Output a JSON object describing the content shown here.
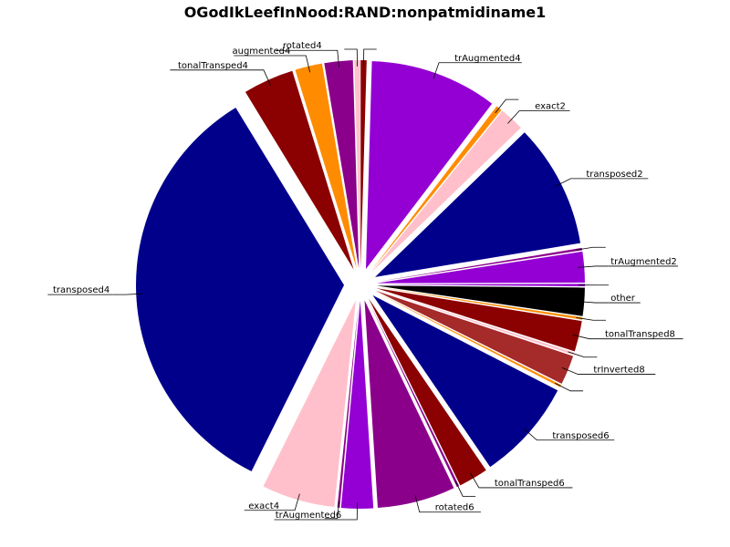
{
  "chart_data": {
    "type": "pie",
    "title": "OGodIkLeefInNood:RAND:nonpatmidiname1",
    "legend": "none",
    "start_angle_deg": 90,
    "direction": "counterclockwise",
    "slices": [
      {
        "label": "",
        "value": 0.5,
        "color": "#ffc0cb",
        "exploded": true
      },
      {
        "label": "rotated4",
        "value": 2.4,
        "color": "#8b008b",
        "exploded": true
      },
      {
        "label": "augmented4",
        "value": 2.3,
        "color": "#ff8c00",
        "exploded": true
      },
      {
        "label": "tonalTransped4",
        "value": 4.3,
        "color": "#8b0000",
        "exploded": true
      },
      {
        "label": "transposed4",
        "value": 37.0,
        "color": "#00008b",
        "exploded": true
      },
      {
        "label": "exact4",
        "value": 6.2,
        "color": "#ffc0cb",
        "exploded": true
      },
      {
        "label": "",
        "value": 0.2,
        "color": "#8b008b",
        "exploded": true
      },
      {
        "label": "trAugmented6",
        "value": 2.7,
        "color": "#9400d3",
        "exploded": true
      },
      {
        "label": "rotated6",
        "value": 6.6,
        "color": "#8b008b",
        "exploded": true
      },
      {
        "label": "",
        "value": 0.2,
        "color": "#8b008b",
        "exploded": true
      },
      {
        "label": "tonalTransped6",
        "value": 2.5,
        "color": "#8b0000",
        "exploded": true
      },
      {
        "label": "transposed6",
        "value": 8.6,
        "color": "#00008b",
        "exploded": true
      },
      {
        "label": "",
        "value": 0.2,
        "color": "#ff8c00",
        "exploded": true
      },
      {
        "label": "trInverted8",
        "value": 2.5,
        "color": "#a52a2a",
        "exploded": true
      },
      {
        "label": "",
        "value": 0.2,
        "color": "#ffc0cb",
        "exploded": true
      },
      {
        "label": "tonalTransped8",
        "value": 2.6,
        "color": "#8b0000",
        "exploded": true
      },
      {
        "label": "",
        "value": 0.2,
        "color": "#ff8c00",
        "exploded": true
      },
      {
        "label": "other",
        "value": 2.4,
        "color": "#000000",
        "exploded": true
      },
      {
        "label": "",
        "value": 0.2,
        "color": "#9400d3",
        "exploded": true
      },
      {
        "label": "trAugmented2",
        "value": 2.6,
        "color": "#9400d3",
        "exploded": true
      },
      {
        "label": "",
        "value": 0.2,
        "color": "#8b008b",
        "exploded": true
      },
      {
        "label": "transposed2",
        "value": 10.5,
        "color": "#00008b",
        "exploded": true
      },
      {
        "label": "exact2",
        "value": 2.1,
        "color": "#ffc0cb",
        "exploded": true
      },
      {
        "label": "",
        "value": 0.5,
        "color": "#ff8c00",
        "exploded": true
      },
      {
        "label": "trAugmented4",
        "value": 10.8,
        "color": "#9400d3",
        "exploded": true
      },
      {
        "label": "",
        "value": 0.5,
        "color": "#8b0000",
        "exploded": true
      }
    ]
  }
}
